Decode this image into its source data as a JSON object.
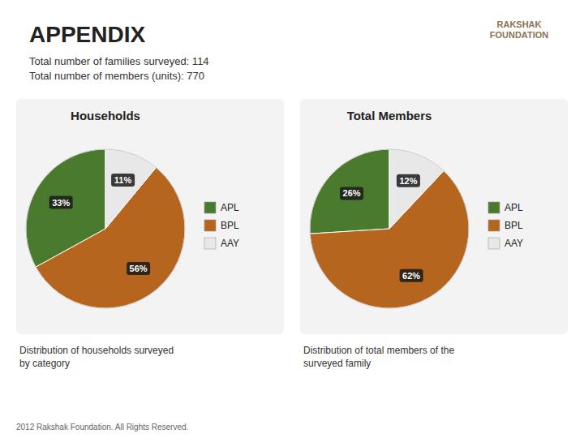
{
  "title": "APPENDIX",
  "subtitle": [
    "Total number of families surveyed: 114",
    "Total number of members (units): 770"
  ],
  "logo": "RAKSHAK\nFOUNDATION",
  "footer": "2012 Rakshak Foundation. All Rights Reserved.",
  "chart_data": [
    {
      "type": "pie",
      "title": "Households",
      "categories": [
        "APL",
        "BPL",
        "AAY"
      ],
      "values": [
        33,
        56,
        11
      ],
      "value_labels": [
        "33%",
        "56%",
        "11%"
      ],
      "colors": [
        "#4a7a2e",
        "#b5651d",
        "#e8e8e8"
      ],
      "data_labels": true,
      "legend": "right",
      "caption": "Distribution of households surveyed\nby category"
    },
    {
      "type": "pie",
      "title": "Total Members",
      "categories": [
        "APL",
        "BPL",
        "AAY"
      ],
      "values": [
        26,
        62,
        12
      ],
      "value_labels": [
        "26%",
        "62%",
        "12%"
      ],
      "colors": [
        "#4a7a2e",
        "#b5651d",
        "#e8e8e8"
      ],
      "data_labels": true,
      "legend": "right",
      "caption": "Distribution of total members of the\nsurveyed family"
    }
  ]
}
